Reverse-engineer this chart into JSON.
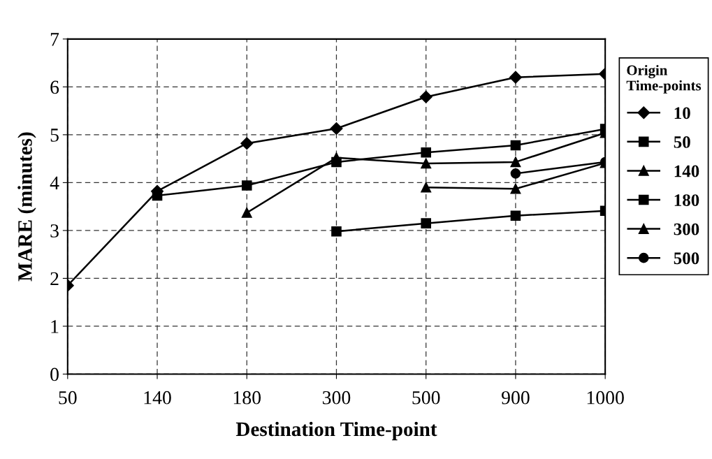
{
  "chart_data": {
    "type": "line",
    "xlabel": "Destination Time-point",
    "ylabel": "MARE (minutes)",
    "legend_title": "Origin\nTime-points",
    "categories": [
      "50",
      "140",
      "180",
      "300",
      "500",
      "900",
      "1000"
    ],
    "series": [
      {
        "name": "10",
        "color": "#000000",
        "marker": "diamond",
        "values": [
          1.85,
          3.82,
          4.82,
          5.13,
          5.79,
          6.2,
          6.27
        ]
      },
      {
        "name": "50",
        "color": "#000000",
        "marker": "square",
        "values": [
          null,
          3.73,
          3.94,
          4.43,
          4.63,
          4.78,
          5.12
        ]
      },
      {
        "name": "140",
        "color": "#000000",
        "marker": "triangle",
        "values": [
          null,
          null,
          3.37,
          4.52,
          4.4,
          4.43,
          5.04
        ]
      },
      {
        "name": "180",
        "color": "#000000",
        "marker": "square",
        "values": [
          null,
          null,
          null,
          2.98,
          3.15,
          3.31,
          3.41
        ]
      },
      {
        "name": "300",
        "color": "#000000",
        "marker": "triangle",
        "values": [
          null,
          null,
          null,
          null,
          3.9,
          3.87,
          4.41
        ]
      },
      {
        "name": "500",
        "color": "#000000",
        "marker": "circle",
        "values": [
          null,
          null,
          null,
          null,
          null,
          4.19,
          4.43
        ]
      }
    ],
    "ylim": [
      0,
      7
    ],
    "yticks": [
      0,
      1,
      2,
      3,
      4,
      5,
      6,
      7
    ],
    "grid": true,
    "line_style": "solid",
    "legend": "right"
  }
}
